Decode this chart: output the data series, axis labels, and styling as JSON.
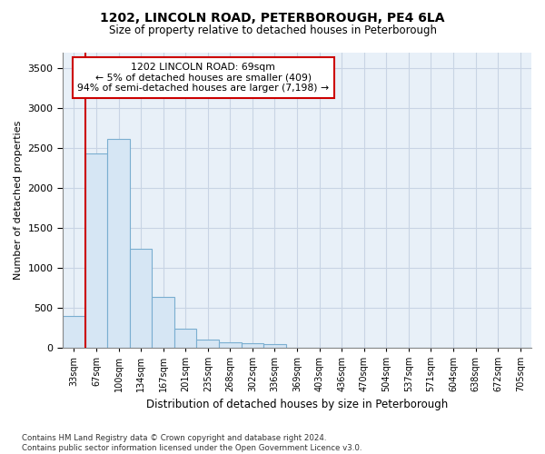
{
  "title": "1202, LINCOLN ROAD, PETERBOROUGH, PE4 6LA",
  "subtitle": "Size of property relative to detached houses in Peterborough",
  "xlabel": "Distribution of detached houses by size in Peterborough",
  "ylabel": "Number of detached properties",
  "categories": [
    "33sqm",
    "67sqm",
    "100sqm",
    "134sqm",
    "167sqm",
    "201sqm",
    "235sqm",
    "268sqm",
    "302sqm",
    "336sqm",
    "369sqm",
    "403sqm",
    "436sqm",
    "470sqm",
    "504sqm",
    "537sqm",
    "571sqm",
    "604sqm",
    "638sqm",
    "672sqm",
    "705sqm"
  ],
  "values": [
    390,
    2430,
    2610,
    1240,
    630,
    240,
    100,
    60,
    50,
    40,
    0,
    0,
    0,
    0,
    0,
    0,
    0,
    0,
    0,
    0,
    0
  ],
  "bar_color": "#d6e6f4",
  "bar_edge_color": "#7aaed0",
  "highlight_color": "#cc0000",
  "annotation_text": "1202 LINCOLN ROAD: 69sqm\n← 5% of detached houses are smaller (409)\n94% of semi-detached houses are larger (7,198) →",
  "annotation_box_facecolor": "#ffffff",
  "annotation_box_edgecolor": "#cc0000",
  "ylim": [
    0,
    3700
  ],
  "yticks": [
    0,
    500,
    1000,
    1500,
    2000,
    2500,
    3000,
    3500
  ],
  "grid_color": "#c8d4e4",
  "plot_bg_color": "#e8f0f8",
  "fig_bg_color": "#ffffff",
  "footnote": "Contains HM Land Registry data © Crown copyright and database right 2024.\nContains public sector information licensed under the Open Government Licence v3.0."
}
